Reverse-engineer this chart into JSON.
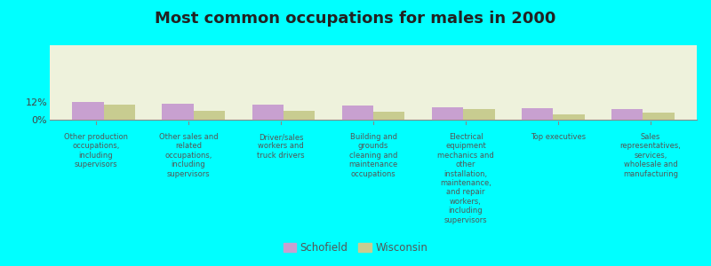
{
  "title": "Most common occupations for males in 2000",
  "background_color": "#00FFFF",
  "plot_background_color": "#EEF2DC",
  "categories": [
    "Other production\noccupations,\nincluding\nsupervisors",
    "Other sales and\nrelated\noccupations,\nincluding\nsupervisors",
    "Driver/sales\nworkers and\ntruck drivers",
    "Building and\ngrounds\ncleaning and\nmaintenance\noccupations",
    "Electrical\nequipment\nmechanics and\nother\ninstallation,\nmaintenance,\nand repair\nworkers,\nincluding\nsupervisors",
    "Top executives",
    "Sales\nrepresentatives,\nservices,\nwholesale and\nmanufacturing"
  ],
  "schofield_values": [
    12.0,
    10.5,
    10.0,
    9.5,
    8.5,
    7.5,
    7.0
  ],
  "wisconsin_values": [
    10.0,
    6.0,
    6.0,
    5.5,
    7.0,
    3.5,
    5.0
  ],
  "schofield_color": "#C8A0D0",
  "wisconsin_color": "#C8CC90",
  "ylim": [
    0,
    50
  ],
  "ytick_positions": [
    0,
    12
  ],
  "ytick_labels": [
    "0%",
    "12%"
  ],
  "legend_schofield": "Schofield",
  "legend_wisconsin": "Wisconsin",
  "bar_width": 0.35
}
